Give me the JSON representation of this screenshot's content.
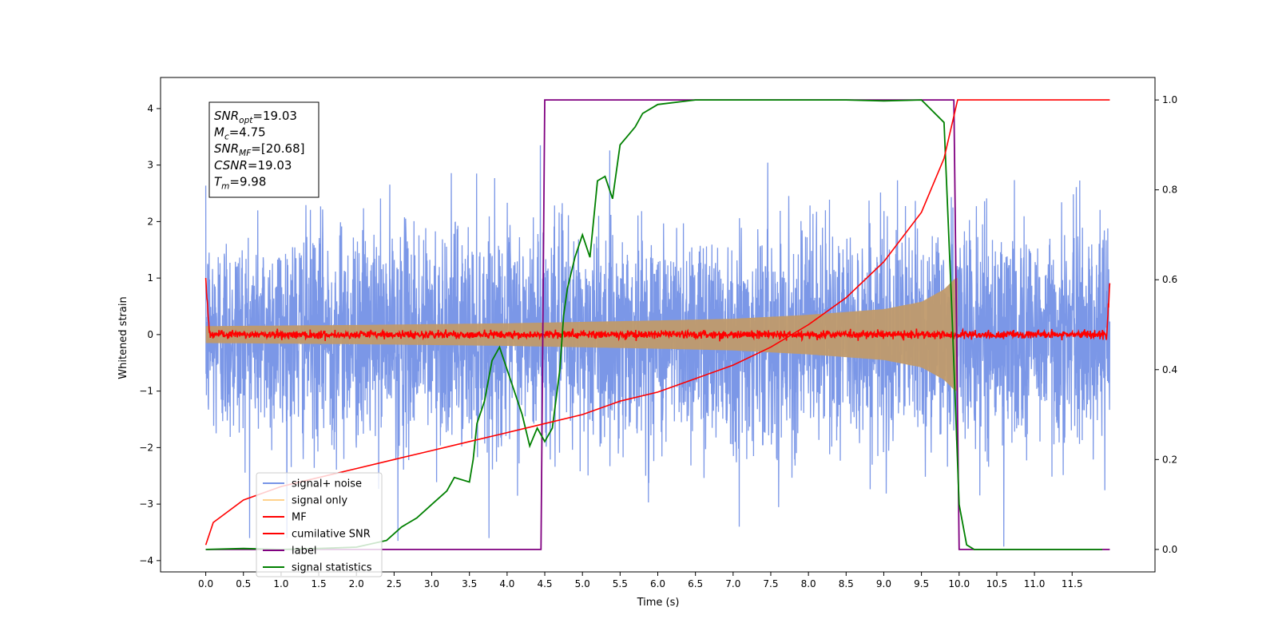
{
  "chart_data": {
    "type": "line",
    "xlabel": "Time (s)",
    "ylabel": "Whitened strain",
    "xlim": [
      -0.6,
      12.6
    ],
    "ylim": [
      -4.2,
      4.55
    ],
    "y2lim": [
      -0.05,
      1.05
    ],
    "xticks": [
      "0.0",
      "0.5",
      "1.0",
      "1.5",
      "2.0",
      "2.5",
      "3.0",
      "3.5",
      "4.0",
      "4.5",
      "5.0",
      "5.5",
      "6.0",
      "6.5",
      "7.0",
      "7.5",
      "8.0",
      "8.5",
      "9.0",
      "9.5",
      "10.0",
      "10.5",
      "11.0",
      "11.5"
    ],
    "yticks": [
      "4",
      "3",
      "2",
      "1",
      "0",
      "−1",
      "−2",
      "−3",
      "−4"
    ],
    "y2ticks": [
      "1.0",
      "0.8",
      "0.6",
      "0.4",
      "0.2",
      "0.0"
    ],
    "legend_position": "lower left",
    "grid": false,
    "annotation": {
      "lines": [
        {
          "sym": "SNR",
          "sub": "opt",
          "val": "=19.03"
        },
        {
          "sym": "M",
          "sub": "c",
          "val": "=4.75"
        },
        {
          "sym": "SNR",
          "sub": "MF",
          "val": "=[20.68]"
        },
        {
          "sym": "CSNR",
          "sub": "",
          "val": "=19.03"
        },
        {
          "sym": "T",
          "sub": "m",
          "val": "=9.98"
        }
      ]
    },
    "series": [
      {
        "name": "signal+ noise",
        "color": "#7895e7",
        "axis": "left",
        "kind": "noise",
        "t_start": 0.0,
        "t_end": 12.0,
        "amplitude_std": 0.95
      },
      {
        "name": "signal only",
        "color": "#ffc870",
        "axis": "left",
        "kind": "chirp_envelope",
        "t_start": 0.0,
        "t_end": 9.98,
        "envelope": [
          [
            0.0,
            0.15
          ],
          [
            2.0,
            0.17
          ],
          [
            4.0,
            0.2
          ],
          [
            6.0,
            0.25
          ],
          [
            7.0,
            0.28
          ],
          [
            8.0,
            0.35
          ],
          [
            9.0,
            0.45
          ],
          [
            9.5,
            0.58
          ],
          [
            9.8,
            0.8
          ],
          [
            9.95,
            1.0
          ]
        ]
      },
      {
        "name": "MF",
        "color": "#ff0000",
        "axis": "left",
        "kind": "mf",
        "t_start": 0.0,
        "t_end": 12.0,
        "start_value": 1.0,
        "end_value": 0.9
      },
      {
        "name": "cumilative SNR",
        "color": "#ff0000",
        "axis": "right",
        "x": [
          0.0,
          0.1,
          0.5,
          1.0,
          1.5,
          2.0,
          2.5,
          3.0,
          3.5,
          4.0,
          4.5,
          5.0,
          5.5,
          6.0,
          6.5,
          7.0,
          7.5,
          8.0,
          8.5,
          9.0,
          9.5,
          9.8,
          9.98,
          10.0,
          11.0,
          12.0
        ],
        "y": [
          0.01,
          0.06,
          0.11,
          0.14,
          0.16,
          0.18,
          0.2,
          0.22,
          0.24,
          0.26,
          0.28,
          0.3,
          0.33,
          0.35,
          0.38,
          0.41,
          0.45,
          0.5,
          0.56,
          0.64,
          0.75,
          0.87,
          1.0,
          1.0,
          1.0,
          1.0
        ]
      },
      {
        "name": "label",
        "color": "#800080",
        "axis": "right",
        "x": [
          0.0,
          4.45,
          4.5,
          9.93,
          10.0,
          12.0
        ],
        "y": [
          0.0,
          0.0,
          1.0,
          1.0,
          0.0,
          0.0
        ]
      },
      {
        "name": "signal statistics",
        "color": "#008000",
        "axis": "right",
        "x": [
          0.0,
          0.5,
          1.0,
          1.5,
          2.0,
          2.4,
          2.6,
          2.8,
          3.0,
          3.2,
          3.3,
          3.5,
          3.55,
          3.6,
          3.7,
          3.8,
          3.9,
          4.0,
          4.1,
          4.2,
          4.3,
          4.4,
          4.5,
          4.6,
          4.7,
          4.75,
          4.8,
          4.9,
          5.0,
          5.1,
          5.2,
          5.3,
          5.4,
          5.5,
          5.6,
          5.7,
          5.8,
          6.0,
          6.5,
          7.0,
          7.5,
          8.0,
          8.5,
          9.0,
          9.5,
          9.8,
          9.9,
          10.0,
          10.1,
          10.2,
          10.5,
          11.0,
          11.5,
          11.9
        ],
        "y": [
          0.0,
          0.002,
          0.0,
          0.002,
          0.005,
          0.02,
          0.05,
          0.07,
          0.1,
          0.13,
          0.16,
          0.15,
          0.2,
          0.28,
          0.33,
          0.42,
          0.45,
          0.4,
          0.35,
          0.3,
          0.23,
          0.27,
          0.24,
          0.27,
          0.4,
          0.52,
          0.58,
          0.65,
          0.7,
          0.65,
          0.82,
          0.83,
          0.78,
          0.9,
          0.92,
          0.94,
          0.97,
          0.99,
          1.0,
          1.0,
          1.0,
          1.0,
          1.0,
          0.998,
          1.0,
          0.95,
          0.55,
          0.1,
          0.01,
          0.0,
          0.0,
          0.0,
          0.0,
          0.0
        ]
      }
    ]
  }
}
